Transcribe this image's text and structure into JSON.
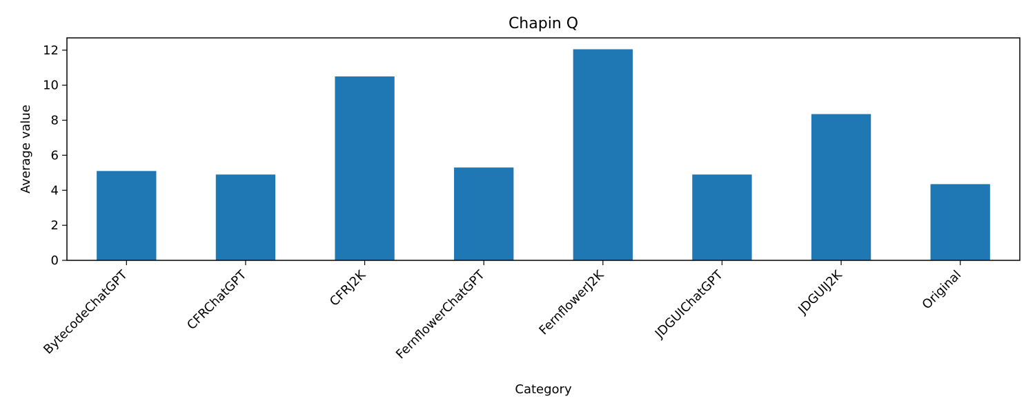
{
  "chart_data": {
    "type": "bar",
    "title": "Chapin Q",
    "xlabel": "Category",
    "ylabel": "Average value",
    "categories": [
      "BytecodeChatGPT",
      "CFRChatGPT",
      "CFRJ2K",
      "FernflowerChatGPT",
      "FernflowerJ2K",
      "JDGUIChatGPT",
      "JDGUIJ2K",
      "Original"
    ],
    "values": [
      5.1,
      4.9,
      10.5,
      5.3,
      12.05,
      4.9,
      8.35,
      4.35
    ],
    "ylim": [
      0,
      12.7
    ],
    "yticks": [
      0,
      2,
      4,
      6,
      8,
      10,
      12
    ],
    "bar_color": "#1f77b4",
    "grid": false,
    "legend": "none"
  }
}
